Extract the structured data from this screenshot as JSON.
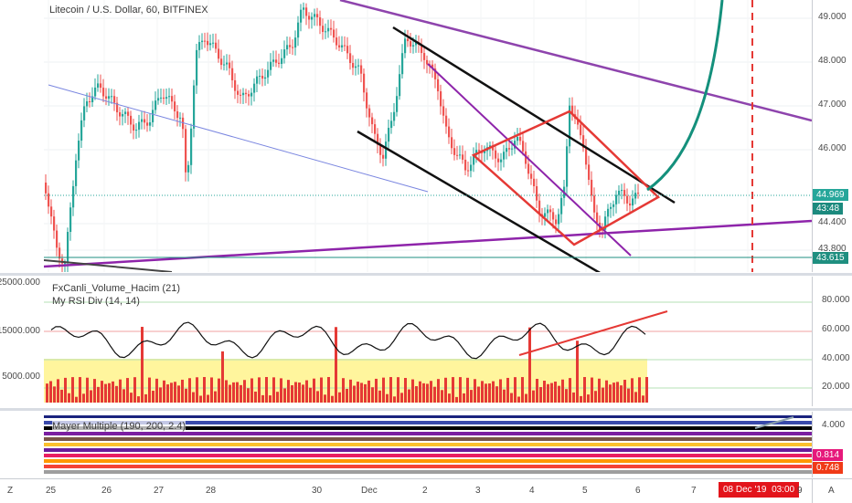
{
  "main": {
    "title": "Litecoin / U.S. Dollar, 60, BITFINEX",
    "price_ticks": [
      "49.000",
      "48.000",
      "47.000",
      "46.000",
      "44.400",
      "43.800"
    ],
    "last_price": "44.969",
    "countdown": "43:48",
    "level_price": "43.615",
    "colors": {
      "up": "#26a69a",
      "down": "#ef5350",
      "last": "#26a69a",
      "level": "#1f8f80"
    }
  },
  "indicator": {
    "legend_1": "FxCanli_Volume_Hacim (21)",
    "legend_2": "My RSI Div (14, 14)",
    "left_ticks": [
      "25000.000",
      "15000.000",
      "5000.000"
    ],
    "right_ticks": [
      "80.000",
      "60.000",
      "40.000",
      "20.000"
    ]
  },
  "mayer": {
    "legend": "Mayer Multiple (190, 200, 2.4)",
    "right_tick": "4.000",
    "value_1": "0.814",
    "value_2": "0.748"
  },
  "time_axis": {
    "labels": [
      "25",
      "26",
      "27",
      "28",
      "30",
      "Dec",
      "2",
      "3",
      "4",
      "5",
      "6",
      "7",
      "9"
    ],
    "current_date": "08 Dec '19",
    "current_time": "03:00"
  },
  "corner": {
    "left": "Z",
    "right": "A"
  }
}
